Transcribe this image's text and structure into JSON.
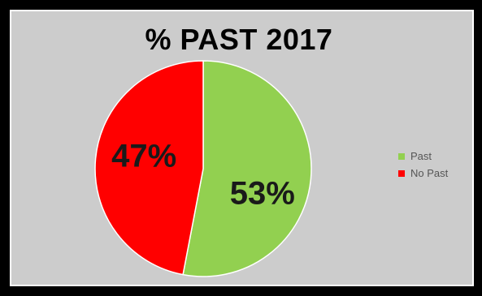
{
  "chart_data": {
    "type": "pie",
    "title": "% PAST 2017",
    "slices": [
      {
        "label": "Past",
        "value": 53,
        "display": "53%",
        "color": "#92d050"
      },
      {
        "label": "No Past",
        "value": 47,
        "display": "47%",
        "color": "#ff0000"
      }
    ],
    "legend_position": "right"
  }
}
